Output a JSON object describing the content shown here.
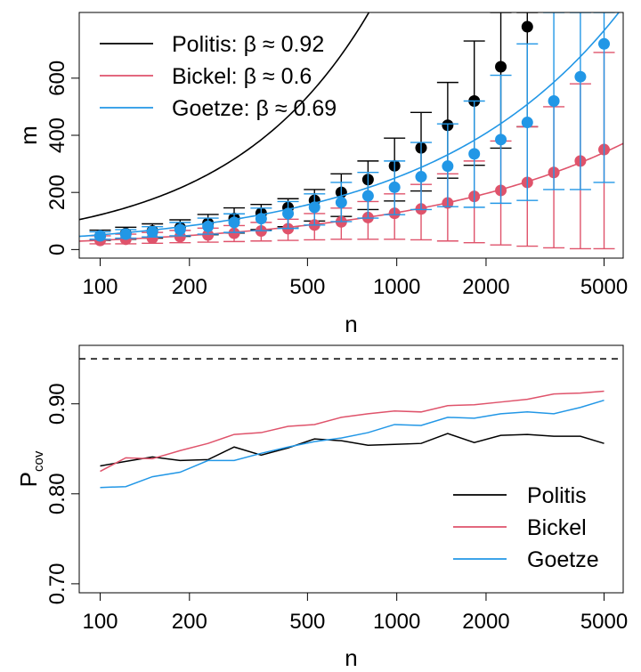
{
  "chart_data": [
    {
      "type": "line",
      "xlabel": "n",
      "ylabel": "m",
      "x_scale": "log",
      "xlim": [
        85,
        5800
      ],
      "ylim": [
        -30,
        830
      ],
      "x_ticks": [
        100,
        200,
        500,
        1000,
        2000,
        5000
      ],
      "x_tick_labels": [
        "100",
        "200",
        "500",
        "1000",
        "2000",
        "5000"
      ],
      "y_ticks": [
        0,
        200,
        400,
        600
      ],
      "y_tick_labels": [
        "0",
        "200",
        "400",
        "600"
      ],
      "grid": false,
      "legend_position": "top-left",
      "x": [
        100,
        122,
        150,
        186,
        231,
        283,
        349,
        430,
        528,
        650,
        800,
        983,
        1208,
        1485,
        1825,
        2243,
        2755,
        3385,
        4160,
        5000
      ],
      "series": [
        {
          "name": "Politis",
          "legend_label": "Politis: β ≈ 0.92",
          "color": "#000000",
          "values": [
            48,
            56,
            65,
            77,
            92,
            109,
            127,
            147,
            172,
            200,
            245,
            293,
            356,
            435,
            520,
            640,
            780,
            null,
            null,
            null
          ],
          "err_low": [
            32,
            36,
            40,
            46,
            52,
            58,
            70,
            80,
            100,
            116,
            140,
            170,
            205,
            250,
            295,
            355,
            430,
            null,
            null,
            null
          ],
          "err_high": [
            68,
            78,
            90,
            104,
            123,
            146,
            158,
            178,
            210,
            265,
            310,
            390,
            480,
            585,
            730,
            830,
            830,
            null,
            null,
            null
          ],
          "fit": {
            "a": 1.76,
            "beta": 0.92
          }
        },
        {
          "name": "Bickel",
          "legend_label": "Bickel: β ≈ 0.6",
          "color": "#DF536B",
          "values": [
            32,
            36,
            40,
            45,
            51,
            57,
            65,
            73,
            86,
            97,
            112,
            127,
            142,
            163,
            186,
            207,
            235,
            270,
            310,
            350
          ],
          "err_low": [
            20,
            20,
            22,
            24,
            26,
            28,
            30,
            32,
            34,
            36,
            36,
            36,
            34,
            30,
            24,
            16,
            12,
            6,
            3,
            3
          ],
          "err_high": [
            48,
            54,
            60,
            67,
            75,
            84,
            95,
            106,
            126,
            145,
            168,
            195,
            228,
            265,
            310,
            380,
            430,
            500,
            580,
            690
          ],
          "fit": {
            "a": 2.05,
            "beta": 0.6
          }
        },
        {
          "name": "Goetze",
          "legend_label": "Goetze: β ≈ 0.69",
          "color": "#2297E6",
          "values": [
            48,
            54,
            62,
            70,
            81,
            95,
            108,
            126,
            148,
            165,
            188,
            218,
            255,
            292,
            335,
            385,
            445,
            520,
            605,
            720
          ],
          "err_low": [
            36,
            40,
            44,
            48,
            54,
            60,
            66,
            74,
            86,
            98,
            110,
            122,
            140,
            150,
            148,
            162,
            172,
            210,
            210,
            235
          ],
          "err_high": [
            62,
            70,
            80,
            95,
            110,
            125,
            145,
            168,
            195,
            235,
            270,
            310,
            375,
            440,
            520,
            610,
            720,
            830,
            830,
            830
          ],
          "fit": {
            "a": 2.15,
            "beta": 0.69
          }
        }
      ]
    },
    {
      "type": "line",
      "xlabel": "n",
      "ylabel": "P",
      "ylabel_subscript": "cov",
      "x_scale": "log",
      "xlim": [
        85,
        5800
      ],
      "ylim": [
        0.69,
        0.965
      ],
      "x_ticks": [
        100,
        200,
        500,
        1000,
        2000,
        5000
      ],
      "x_tick_labels": [
        "100",
        "200",
        "500",
        "1000",
        "2000",
        "5000"
      ],
      "y_ticks": [
        0.7,
        0.8,
        0.9
      ],
      "y_tick_labels": [
        "0.70",
        "0.80",
        "0.90"
      ],
      "reference_line": {
        "y": 0.95,
        "style": "dashed",
        "color": "#000000"
      },
      "grid": false,
      "legend_position": "bottom-right",
      "x": [
        100,
        122,
        150,
        186,
        231,
        283,
        349,
        430,
        528,
        650,
        800,
        983,
        1208,
        1485,
        1825,
        2243,
        2755,
        3385,
        4160,
        5000
      ],
      "series": [
        {
          "name": "Politis",
          "color": "#000000",
          "values": [
            0.831,
            0.836,
            0.841,
            0.837,
            0.838,
            0.852,
            0.843,
            0.851,
            0.861,
            0.859,
            0.854,
            0.855,
            0.856,
            0.867,
            0.857,
            0.865,
            0.866,
            0.864,
            0.864,
            0.856
          ]
        },
        {
          "name": "Bickel",
          "color": "#DF536B",
          "values": [
            0.825,
            0.84,
            0.839,
            0.848,
            0.856,
            0.866,
            0.868,
            0.875,
            0.877,
            0.885,
            0.889,
            0.892,
            0.891,
            0.898,
            0.899,
            0.902,
            0.905,
            0.911,
            0.912,
            0.914
          ]
        },
        {
          "name": "Goetze",
          "color": "#2297E6",
          "values": [
            0.807,
            0.808,
            0.819,
            0.824,
            0.837,
            0.837,
            0.845,
            0.852,
            0.858,
            0.862,
            0.868,
            0.877,
            0.876,
            0.885,
            0.884,
            0.889,
            0.891,
            0.889,
            0.896,
            0.904
          ]
        }
      ]
    }
  ]
}
